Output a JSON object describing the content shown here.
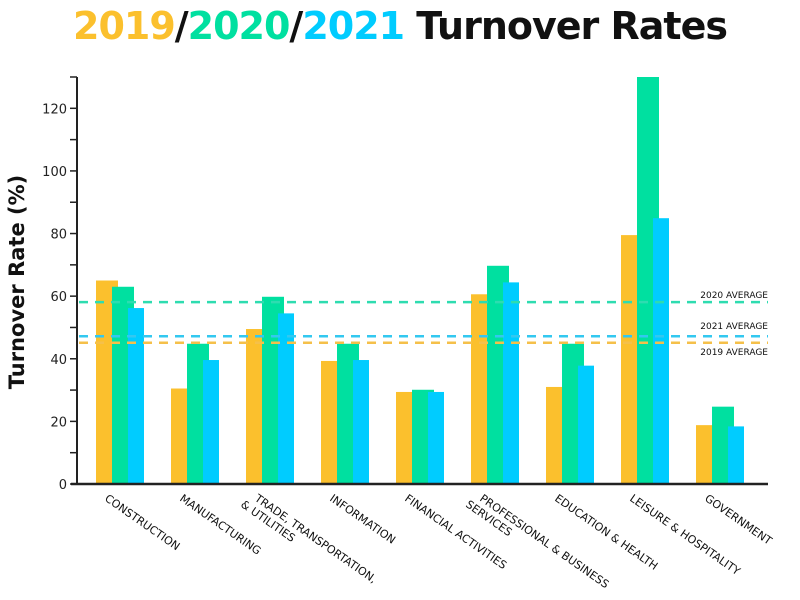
{
  "title": {
    "parts": [
      {
        "text": "2019",
        "color": "#FBC02D"
      },
      {
        "text": "/",
        "color": "#111111"
      },
      {
        "text": "2020",
        "color": "#00E0A0"
      },
      {
        "text": "/",
        "color": "#111111"
      },
      {
        "text": "2021",
        "color": "#00CCFF"
      },
      {
        "text": " Turnover Rates",
        "color": "#111111"
      }
    ]
  },
  "chart_data": {
    "type": "bar",
    "title": "2019/2020/2021 Turnover Rates",
    "ylabel": "Turnover Rate (%)",
    "xlabel": "",
    "ylim": [
      0,
      130
    ],
    "yticks": [
      0,
      20,
      40,
      60,
      80,
      100,
      120
    ],
    "grid": false,
    "categories": [
      [
        "CONSTRUCTION"
      ],
      [
        "MANUFACTURING"
      ],
      [
        "TRADE, TRANSPORTATION,",
        "& UTILITIES"
      ],
      [
        "INFORMATION"
      ],
      [
        "FINANCIAL ACTIVITIES"
      ],
      [
        "PROFESSIONAL & BUSINESS",
        "SERVICES"
      ],
      [
        "EDUCATION & HEALTH"
      ],
      [
        "LEISURE & HOSPITALITY"
      ],
      [
        "GOVERNMENT"
      ]
    ],
    "series": [
      {
        "year": "2019",
        "color": "#FBC02D",
        "values": [
          65,
          30.5,
          49.5,
          39.3,
          29.4,
          60.6,
          31,
          79.5,
          18.8
        ]
      },
      {
        "year": "2020",
        "color": "#00E0A0",
        "values": [
          63,
          44.8,
          59.8,
          44.8,
          30.1,
          69.7,
          44.8,
          130,
          24.7
        ]
      },
      {
        "year": "2021",
        "color": "#00CCFF",
        "values": [
          56.2,
          39.6,
          54.5,
          39.6,
          29.4,
          64.4,
          37.8,
          84.9,
          18.4
        ]
      }
    ],
    "averages": [
      {
        "label": "2020 AVERAGE",
        "value": 58.1,
        "color": "#2EDCB0"
      },
      {
        "label": "2021 AVERAGE",
        "value": 47.2,
        "color": "#33C8F0"
      },
      {
        "label": "2019 AVERAGE",
        "value": 45.1,
        "color": "#F5C04A"
      }
    ]
  }
}
